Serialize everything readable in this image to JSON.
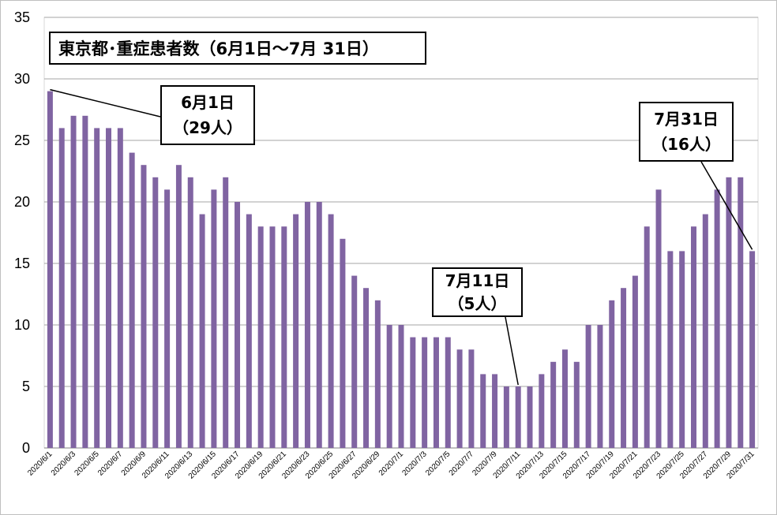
{
  "chart_data": {
    "type": "bar",
    "title": "東京都･重症患者数（6月1日～7月 31日）",
    "xlabel": "",
    "ylabel": "",
    "ylim": [
      0,
      35
    ],
    "yticks": [
      0,
      5,
      10,
      15,
      20,
      25,
      30,
      35
    ],
    "grid": true,
    "legend": "none",
    "bar_color": "#8064A2",
    "categories": [
      "2020/6/1",
      "2020/6/2",
      "2020/6/3",
      "2020/6/4",
      "2020/6/5",
      "2020/6/6",
      "2020/6/7",
      "2020/6/8",
      "2020/6/9",
      "2020/6/10",
      "2020/6/11",
      "2020/6/12",
      "2020/6/13",
      "2020/6/14",
      "2020/6/15",
      "2020/6/16",
      "2020/6/17",
      "2020/6/18",
      "2020/6/19",
      "2020/6/20",
      "2020/6/21",
      "2020/6/22",
      "2020/6/23",
      "2020/6/24",
      "2020/6/25",
      "2020/6/26",
      "2020/6/27",
      "2020/6/28",
      "2020/6/29",
      "2020/6/30",
      "2020/7/1",
      "2020/7/2",
      "2020/7/3",
      "2020/7/4",
      "2020/7/5",
      "2020/7/6",
      "2020/7/7",
      "2020/7/8",
      "2020/7/9",
      "2020/7/10",
      "2020/7/11",
      "2020/7/12",
      "2020/7/13",
      "2020/7/14",
      "2020/7/15",
      "2020/7/16",
      "2020/7/17",
      "2020/7/18",
      "2020/7/19",
      "2020/7/20",
      "2020/7/21",
      "2020/7/22",
      "2020/7/23",
      "2020/7/24",
      "2020/7/25",
      "2020/7/26",
      "2020/7/27",
      "2020/7/28",
      "2020/7/29",
      "2020/7/30",
      "2020/7/31"
    ],
    "xtick_labels": [
      "2020/6/1",
      "2020/6/3",
      "2020/6/5",
      "2020/6/7",
      "2020/6/9",
      "2020/6/11",
      "2020/6/13",
      "2020/6/15",
      "2020/6/17",
      "2020/6/19",
      "2020/6/21",
      "2020/6/23",
      "2020/6/25",
      "2020/6/27",
      "2020/6/29",
      "2020/7/1",
      "2020/7/3",
      "2020/7/5",
      "2020/7/7",
      "2020/7/9",
      "2020/7/11",
      "2020/7/13",
      "2020/7/15",
      "2020/7/17",
      "2020/7/19",
      "2020/7/21",
      "2020/7/23",
      "2020/7/25",
      "2020/7/27",
      "2020/7/29",
      "2020/7/31"
    ],
    "values": [
      29,
      26,
      27,
      27,
      26,
      26,
      26,
      24,
      23,
      22,
      21,
      23,
      22,
      19,
      21,
      22,
      20,
      19,
      18,
      18,
      18,
      19,
      20,
      20,
      19,
      17,
      14,
      13,
      12,
      10,
      10,
      9,
      9,
      9,
      9,
      8,
      8,
      6,
      6,
      5,
      5,
      5,
      6,
      7,
      8,
      7,
      10,
      10,
      12,
      13,
      14,
      18,
      21,
      16,
      16,
      18,
      19,
      21,
      22,
      22,
      16
    ],
    "annotations": [
      {
        "category": "2020/6/1",
        "line1": "6月1日",
        "line2": "（29人）"
      },
      {
        "category": "2020/7/11",
        "line1": "7月11日",
        "line2": "（5人）"
      },
      {
        "category": "2020/7/31",
        "line1": "7月31日",
        "line2": "（16人）"
      }
    ]
  }
}
